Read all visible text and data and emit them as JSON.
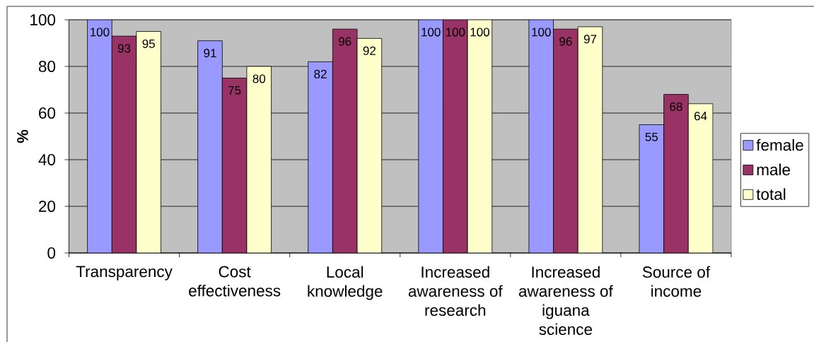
{
  "chart_data": {
    "type": "bar",
    "ylabel": "%",
    "categories": [
      "Transparency",
      "Cost effectiveness",
      "Local knowledge",
      "Increased awareness of research",
      "Increased awareness of iguana science",
      "Source of income"
    ],
    "series": [
      {
        "name": "female",
        "color": "#9999ff",
        "values": [
          100,
          91,
          82,
          100,
          100,
          55
        ]
      },
      {
        "name": "male",
        "color": "#993366",
        "values": [
          93,
          75,
          96,
          100,
          96,
          68
        ]
      },
      {
        "name": "total",
        "color": "#ffffcc",
        "values": [
          95,
          80,
          92,
          100,
          97,
          64
        ]
      }
    ],
    "ylim": [
      0,
      100
    ],
    "yticks": [
      0,
      20,
      40,
      60,
      80,
      100
    ],
    "grid": "y",
    "legend": "right",
    "data_labels": true
  }
}
